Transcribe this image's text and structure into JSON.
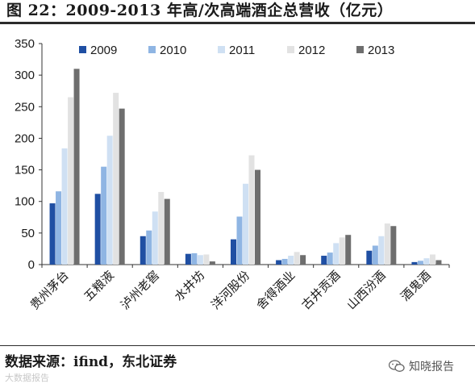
{
  "title": "图 22：2009-2013 年高/次高端酒企总营收（亿元）",
  "source": "数据来源：ifind，东北证券",
  "watermark_left": "大数据报告",
  "watermark_right": "知晓报告",
  "colors": {
    "2009": "#1f4fa3",
    "2010": "#8fb5e3",
    "2011": "#cfe0f3",
    "2012": "#e2e2e2",
    "2013": "#6e6e6e"
  },
  "chart_data": {
    "type": "bar",
    "categories": [
      "贵州茅台",
      "五粮液",
      "泸州老窖",
      "水井坊",
      "洋河股份",
      "舍得酒业",
      "古井贡酒",
      "山西汾酒",
      "酒鬼酒"
    ],
    "series": [
      {
        "name": "2009",
        "values": [
          97,
          112,
          45,
          17,
          40,
          7,
          14,
          22,
          4
        ]
      },
      {
        "name": "2010",
        "values": [
          116,
          155,
          54,
          18,
          76,
          9,
          19,
          30,
          6
        ]
      },
      {
        "name": "2011",
        "values": [
          184,
          204,
          84,
          15,
          128,
          14,
          34,
          45,
          10
        ]
      },
      {
        "name": "2012",
        "values": [
          265,
          272,
          115,
          16,
          173,
          20,
          43,
          65,
          16
        ]
      },
      {
        "name": "2013",
        "values": [
          310,
          247,
          104,
          5,
          150,
          15,
          47,
          61,
          7
        ]
      }
    ],
    "ylim": [
      0,
      350
    ],
    "yticks": [
      0,
      50,
      100,
      150,
      200,
      250,
      300,
      350
    ],
    "legend_position": "top",
    "grid": false
  }
}
